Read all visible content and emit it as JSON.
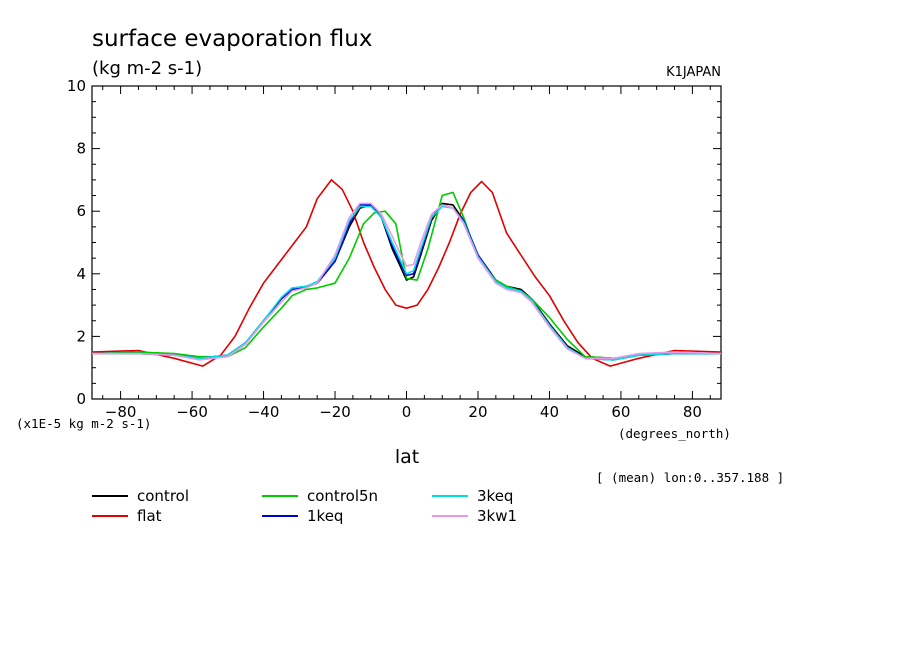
{
  "chart_data": {
    "type": "line",
    "title": "surface evaporation flux",
    "subtitle": "(kg m-2 s-1)",
    "institution": "K1JAPAN",
    "xlabel": "lat",
    "x_units": "(degrees_north)",
    "y_scale_label": "(x1E-5 kg m-2 s-1)",
    "footnote": "[ (mean) lon:0..357.188 ]",
    "xlim": [
      -88,
      88
    ],
    "ylim": [
      0,
      10
    ],
    "xticks": [
      -80,
      -60,
      -40,
      -20,
      0,
      20,
      40,
      60,
      80
    ],
    "yticks": [
      0,
      2,
      4,
      6,
      8,
      10
    ],
    "series": [
      {
        "name": "control",
        "color": "#000000",
        "x": [
          -88,
          -75,
          -65,
          -58,
          -50,
          -45,
          -40,
          -35,
          -32,
          -28,
          -25,
          -20,
          -16,
          -13,
          -10,
          -7,
          -4,
          -2,
          0,
          2,
          4,
          7,
          10,
          13,
          16,
          20,
          25,
          28,
          32,
          35,
          40,
          45,
          50,
          58,
          65,
          75,
          88
        ],
        "y": [
          1.45,
          1.45,
          1.4,
          1.3,
          1.4,
          1.8,
          2.5,
          3.2,
          3.5,
          3.6,
          3.7,
          4.4,
          5.5,
          6.1,
          6.2,
          5.8,
          4.8,
          4.3,
          3.8,
          3.9,
          4.6,
          5.7,
          6.25,
          6.2,
          5.7,
          4.6,
          3.8,
          3.6,
          3.5,
          3.2,
          2.4,
          1.7,
          1.35,
          1.3,
          1.4,
          1.45,
          1.45
        ]
      },
      {
        "name": "flat",
        "color": "#e00000",
        "x": [
          -88,
          -75,
          -65,
          -57,
          -52,
          -48,
          -44,
          -40,
          -36,
          -32,
          -28,
          -25,
          -21,
          -18,
          -15,
          -12,
          -9,
          -6,
          -3,
          0,
          3,
          6,
          9,
          12,
          15,
          18,
          21,
          24,
          28,
          32,
          36,
          40,
          44,
          48,
          52,
          57,
          65,
          75,
          88
        ],
        "y": [
          1.5,
          1.55,
          1.3,
          1.05,
          1.4,
          2.0,
          2.9,
          3.7,
          4.3,
          4.9,
          5.5,
          6.4,
          7.0,
          6.7,
          6.0,
          5.0,
          4.2,
          3.5,
          3.0,
          2.9,
          3.0,
          3.5,
          4.2,
          5.0,
          5.9,
          6.6,
          6.95,
          6.6,
          5.3,
          4.6,
          3.9,
          3.3,
          2.5,
          1.8,
          1.3,
          1.05,
          1.3,
          1.55,
          1.5
        ]
      },
      {
        "name": "control5n",
        "color": "#00cc00",
        "x": [
          -88,
          -75,
          -65,
          -58,
          -50,
          -45,
          -40,
          -35,
          -32,
          -28,
          -25,
          -20,
          -16,
          -12,
          -9,
          -6,
          -3,
          0,
          3,
          6,
          10,
          13,
          16,
          20,
          25,
          28,
          32,
          35,
          40,
          45,
          50,
          58,
          65,
          75,
          88
        ],
        "y": [
          1.45,
          1.5,
          1.45,
          1.35,
          1.35,
          1.65,
          2.3,
          2.9,
          3.3,
          3.5,
          3.55,
          3.7,
          4.5,
          5.6,
          5.95,
          6.0,
          5.6,
          3.85,
          3.8,
          4.8,
          6.5,
          6.6,
          5.8,
          4.5,
          3.8,
          3.6,
          3.45,
          3.2,
          2.6,
          1.9,
          1.35,
          1.3,
          1.4,
          1.45,
          1.45
        ]
      },
      {
        "name": "1keq",
        "color": "#0000dd",
        "x": [
          -88,
          -75,
          -65,
          -58,
          -50,
          -45,
          -40,
          -35,
          -32,
          -28,
          -25,
          -20,
          -16,
          -13,
          -10,
          -7,
          -4,
          -2,
          0,
          2,
          4,
          7,
          10,
          13,
          16,
          20,
          25,
          28,
          32,
          35,
          40,
          45,
          50,
          58,
          65,
          75,
          88
        ],
        "y": [
          1.45,
          1.45,
          1.4,
          1.3,
          1.4,
          1.8,
          2.5,
          3.2,
          3.5,
          3.6,
          3.7,
          4.4,
          5.6,
          6.2,
          6.2,
          5.8,
          4.9,
          4.4,
          3.95,
          4.0,
          4.7,
          5.8,
          6.2,
          6.1,
          5.7,
          4.6,
          3.75,
          3.55,
          3.45,
          3.15,
          2.35,
          1.65,
          1.3,
          1.25,
          1.4,
          1.45,
          1.45
        ]
      },
      {
        "name": "3keq",
        "color": "#00e0e0",
        "x": [
          -88,
          -75,
          -65,
          -58,
          -50,
          -45,
          -40,
          -35,
          -32,
          -28,
          -25,
          -20,
          -16,
          -13,
          -10,
          -7,
          -4,
          -2,
          0,
          2,
          4,
          7,
          10,
          13,
          16,
          20,
          25,
          28,
          32,
          35,
          40,
          45,
          50,
          58,
          65,
          75,
          88
        ],
        "y": [
          1.45,
          1.45,
          1.4,
          1.3,
          1.4,
          1.8,
          2.5,
          3.25,
          3.55,
          3.6,
          3.75,
          4.5,
          5.7,
          6.15,
          6.15,
          5.8,
          5.0,
          4.5,
          4.0,
          4.1,
          4.8,
          5.8,
          6.15,
          6.1,
          5.65,
          4.55,
          3.75,
          3.55,
          3.45,
          3.15,
          2.35,
          1.65,
          1.3,
          1.25,
          1.4,
          1.45,
          1.45
        ]
      },
      {
        "name": "3kw1",
        "color": "#e89ae8",
        "x": [
          -88,
          -75,
          -65,
          -58,
          -50,
          -45,
          -40,
          -35,
          -32,
          -28,
          -25,
          -20,
          -16,
          -13,
          -10,
          -7,
          -4,
          -2,
          0,
          2,
          4,
          7,
          10,
          13,
          16,
          20,
          25,
          28,
          32,
          35,
          40,
          45,
          50,
          58,
          65,
          75,
          88
        ],
        "y": [
          1.45,
          1.45,
          1.4,
          1.25,
          1.35,
          1.75,
          2.45,
          3.1,
          3.45,
          3.55,
          3.7,
          4.6,
          5.8,
          6.25,
          6.25,
          5.9,
          5.2,
          4.7,
          4.25,
          4.3,
          5.0,
          5.9,
          6.2,
          6.1,
          5.6,
          4.5,
          3.7,
          3.5,
          3.4,
          3.1,
          2.3,
          1.6,
          1.3,
          1.3,
          1.45,
          1.5,
          1.45
        ]
      }
    ]
  }
}
